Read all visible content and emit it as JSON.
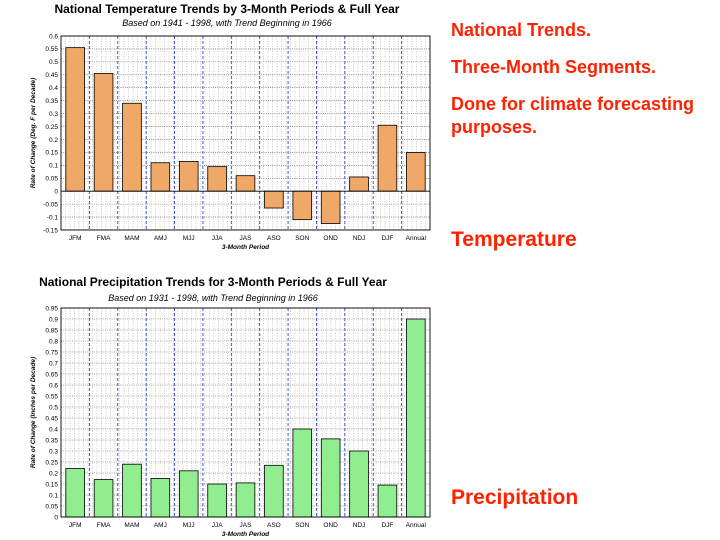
{
  "side_text": {
    "line1": "National Trends.",
    "line2": "Three-Month Segments.",
    "line3": "Done for climate forecasting purposes.",
    "temperature_label": "Temperature",
    "precipitation_label": "Precipitation"
  },
  "chart_data": [
    {
      "type": "bar",
      "title": "National Temperature Trends by 3-Month Periods & Full Year",
      "subtitle": "Based on 1941 - 1998, with Trend Beginning in 1966",
      "xlabel": "3-Month Period",
      "ylabel": "Rate of Change (Deg. F per Decade)",
      "categories": [
        "JFM",
        "FMA",
        "MAM",
        "AMJ",
        "MJJ",
        "JJA",
        "JAS",
        "ASO",
        "SON",
        "OND",
        "NDJ",
        "DJF",
        "Annual"
      ],
      "values": [
        0.555,
        0.455,
        0.34,
        0.11,
        0.115,
        0.095,
        0.06,
        -0.065,
        -0.11,
        -0.125,
        0.055,
        0.255,
        0.15
      ],
      "ylim": [
        -0.15,
        0.6
      ],
      "yticks": [
        "0.6",
        "0.55",
        "0.5",
        "0.45",
        "0.4",
        "0.35",
        "0.3",
        "0.25",
        "0.2",
        "0.15",
        "0.1",
        "0.05",
        "0",
        "-0.05",
        "-0.1",
        "-0.15"
      ],
      "ytick_values": [
        0.6,
        0.55,
        0.5,
        0.45,
        0.4,
        0.35,
        0.3,
        0.25,
        0.2,
        0.15,
        0.1,
        0.05,
        0,
        -0.05,
        -0.1,
        -0.15
      ],
      "grid": true,
      "bar_color": "#f0a868"
    },
    {
      "type": "bar",
      "title": "National Precipitation Trends for 3-Month Periods & Full Year",
      "subtitle": "Based on 1931 - 1998, with Trend Beginning in 1966",
      "xlabel": "3-Month Period",
      "ylabel": "Rate of Change (Inches per Decade)",
      "categories": [
        "JFM",
        "FMA",
        "MAM",
        "AMJ",
        "MJJ",
        "JJA",
        "JAS",
        "ASO",
        "SON",
        "OND",
        "NDJ",
        "DJF",
        "Annual"
      ],
      "values": [
        0.22,
        0.17,
        0.24,
        0.175,
        0.21,
        0.15,
        0.155,
        0.235,
        0.4,
        0.355,
        0.3,
        0.145,
        0.9
      ],
      "ylim": [
        0,
        0.95
      ],
      "yticks": [
        "0.95",
        "0.9",
        "0.85",
        "0.8",
        "0.75",
        "0.7",
        "0.65",
        "0.6",
        "0.55",
        "0.5",
        "0.45",
        "0.4",
        "0.35",
        "0.3",
        "0.25",
        "0.2",
        "0.15",
        "0.1",
        "0.05",
        "0"
      ],
      "ytick_values": [
        0.95,
        0.9,
        0.85,
        0.8,
        0.75,
        0.7,
        0.65,
        0.6,
        0.55,
        0.5,
        0.45,
        0.4,
        0.35,
        0.3,
        0.25,
        0.2,
        0.15,
        0.1,
        0.05,
        0
      ],
      "grid": true,
      "bar_color": "#90ee90"
    }
  ]
}
